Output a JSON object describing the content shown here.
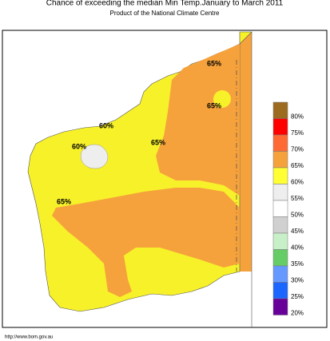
{
  "title": "Chance of exceeding the median Min Temp.January to March 2011",
  "subtitle": "Product of the National Climate Centre",
  "map_labels": [
    "65%",
    "65%",
    "60%",
    "60%",
    "65%",
    "65%"
  ],
  "legend": [
    {
      "label": "80%",
      "color": "#9c6b1f"
    },
    {
      "label": "75%",
      "color": "#ff0000"
    },
    {
      "label": "70%",
      "color": "#ff6a34"
    },
    {
      "label": "65%",
      "color": "#f6a23c"
    },
    {
      "label": "60%",
      "color": "#ffff33"
    },
    {
      "label": "55%",
      "color": "#eeeeee"
    },
    {
      "label": "50%",
      "color": "#ffffff"
    },
    {
      "label": "45%",
      "color": "#d0d0d0"
    },
    {
      "label": "40%",
      "color": "#c8f0c8"
    },
    {
      "label": "35%",
      "color": "#66cc66"
    },
    {
      "label": "30%",
      "color": "#6699ff"
    },
    {
      "label": "25%",
      "color": "#1a66ff"
    },
    {
      "label": "20%",
      "color": "#660099"
    }
  ],
  "source": "http://www.bom.gov.au"
}
